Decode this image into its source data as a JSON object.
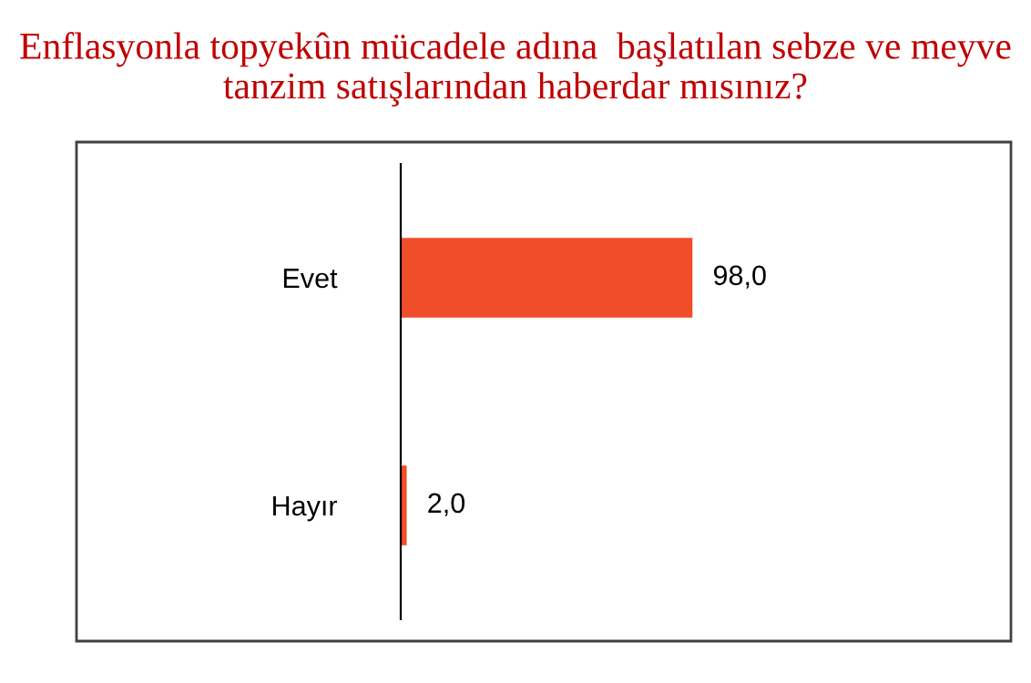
{
  "chart_data": {
    "type": "bar",
    "orientation": "horizontal",
    "title": "Enflasyonla topyekûn mücadele adına  başlatılan sebze ve meyve tanzim satışlarından haberdar mısınız?",
    "categories": [
      "Evet",
      "Hayır"
    ],
    "values": [
      98.0,
      2.0
    ],
    "value_labels": [
      "98,0",
      "2,0"
    ],
    "color": "#f04e2a",
    "xlim": [
      0,
      205
    ],
    "tick_labels": "y",
    "grid": false,
    "legend": false
  }
}
